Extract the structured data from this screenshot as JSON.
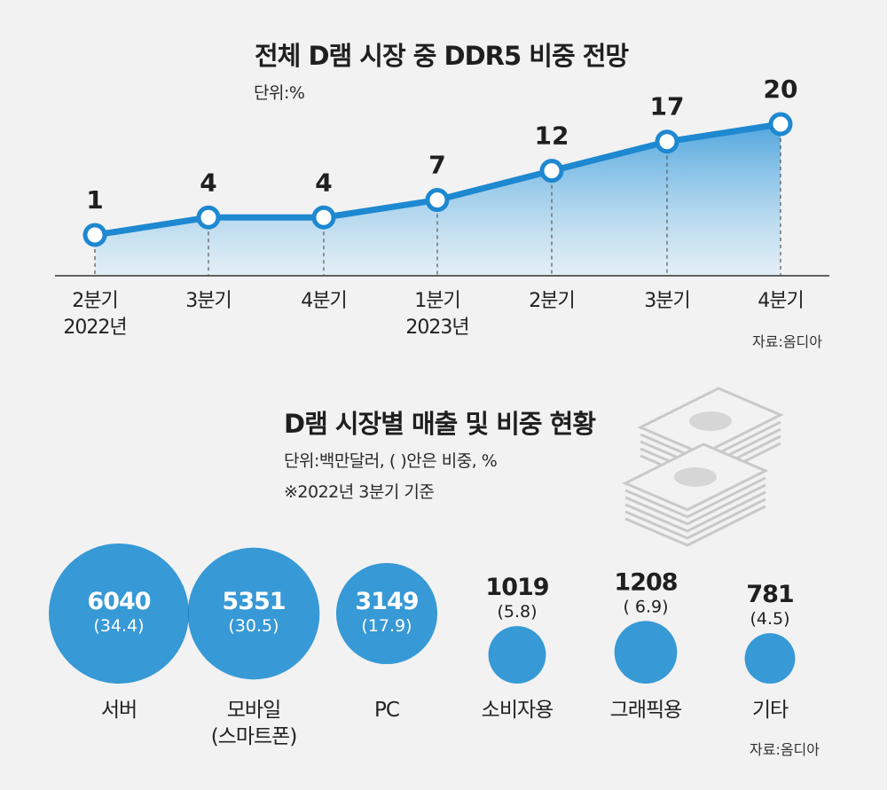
{
  "colors": {
    "accent": "#2a8fd3",
    "line": "#1e88d0",
    "bubble": "#3799d6",
    "bubble_overlap": "#2480c4"
  },
  "line_chart": {
    "title": "전체 D램 시장 중 DDR5 비중 전망",
    "unit": "단위:%",
    "source": "자료:옴디아"
  },
  "bubble_chart": {
    "title": "D램 시장별 매출 및 비중 현황",
    "unit": "단위:백만달러, ( )안은 비중, %",
    "note": "※2022년 3분기 기준",
    "source": "자료:옴디아"
  },
  "decoration": {
    "icon": "money-stack-icon"
  },
  "chart_data": [
    {
      "type": "line",
      "title": "전체 D램 시장 중 DDR5 비중 전망",
      "ylabel": "단위:%",
      "categories": [
        [
          "2분기",
          "2022년"
        ],
        [
          "3분기"
        ],
        [
          "4분기"
        ],
        [
          "1분기",
          "2023년"
        ],
        [
          "2분기"
        ],
        [
          "3분기"
        ],
        [
          "4분기"
        ]
      ],
      "values": [
        1,
        4,
        4,
        7,
        12,
        17,
        20
      ],
      "data_labels": [
        "1",
        "4",
        "4",
        "7",
        "12",
        "17",
        "20"
      ],
      "ylim": [
        0,
        22
      ],
      "grid": false,
      "fill": "area-gradient"
    },
    {
      "type": "bubble",
      "title": "D램 시장별 매출 및 비중 현황",
      "items": [
        {
          "name": [
            "서버"
          ],
          "value": 6040,
          "value_label": "6040",
          "share_label": "(34.4)",
          "share": 34.4
        },
        {
          "name": [
            "모바일",
            "(스마트폰)"
          ],
          "value": 5351,
          "value_label": "5351",
          "share_label": "(30.5)",
          "share": 30.5
        },
        {
          "name": [
            "PC"
          ],
          "value": 3149,
          "value_label": "3149",
          "share_label": "(17.9)",
          "share": 17.9
        },
        {
          "name": [
            "소비자용"
          ],
          "value": 1019,
          "value_label": "1019",
          "share_label": "(5.8)",
          "share": 5.8
        },
        {
          "name": [
            "그래픽용"
          ],
          "value": 1208,
          "value_label": "1208",
          "share_label": "( 6.9)",
          "share": 6.9
        },
        {
          "name": [
            "기타"
          ],
          "value": 781,
          "value_label": "781",
          "share_label": "(4.5)",
          "share": 4.5
        }
      ]
    }
  ]
}
